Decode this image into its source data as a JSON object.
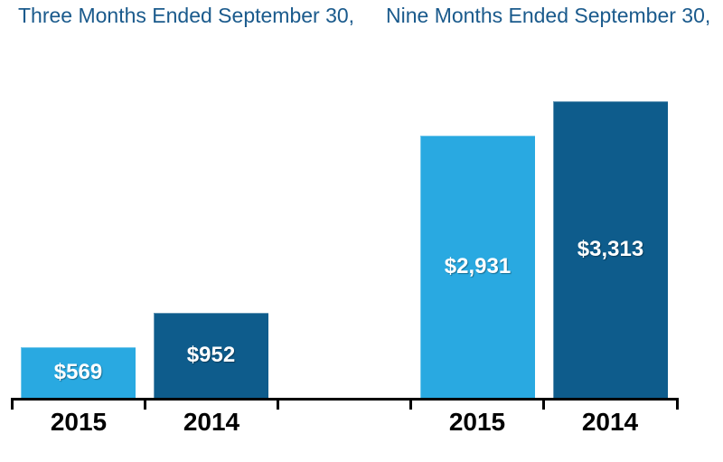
{
  "colors": {
    "background": "#FFFFFF",
    "bar_light_blue": "#29A9E1",
    "bar_dark_blue": "#0E5C8C",
    "header_text": "#1A5A8C",
    "axis": "#000000",
    "bar_label_text": "#FFFFFF",
    "year_label_text": "#000000"
  },
  "chart_data": {
    "type": "bar",
    "title": "",
    "group_labels": [
      "Three Months Ended September 30,",
      "Nine Months Ended September 30,"
    ],
    "categories": [
      "2015",
      "2014",
      "2015",
      "2014"
    ],
    "values": [
      569,
      952,
      2931,
      3313
    ],
    "data_labels": [
      "$569",
      "$952",
      "$2,931",
      "$3,313"
    ],
    "bar_colors": [
      "#29A9E1",
      "#0E5C8C",
      "#29A9E1",
      "#0E5C8C"
    ],
    "bar_groups": [
      {
        "group": "Three Months Ended September 30,",
        "bars": [
          {
            "category": "2015",
            "value": 569,
            "label": "$569"
          },
          {
            "category": "2014",
            "value": 952,
            "label": "$952"
          }
        ]
      },
      {
        "group": "Nine Months Ended September 30,",
        "bars": [
          {
            "category": "2015",
            "value": 2931,
            "label": "$2,931"
          },
          {
            "category": "2014",
            "value": 3313,
            "label": "$3,313"
          }
        ]
      }
    ],
    "ylim": [
      0,
      3450
    ],
    "grid": false,
    "legend": false,
    "y_axis_shown": false,
    "x_axis_shown": true
  }
}
